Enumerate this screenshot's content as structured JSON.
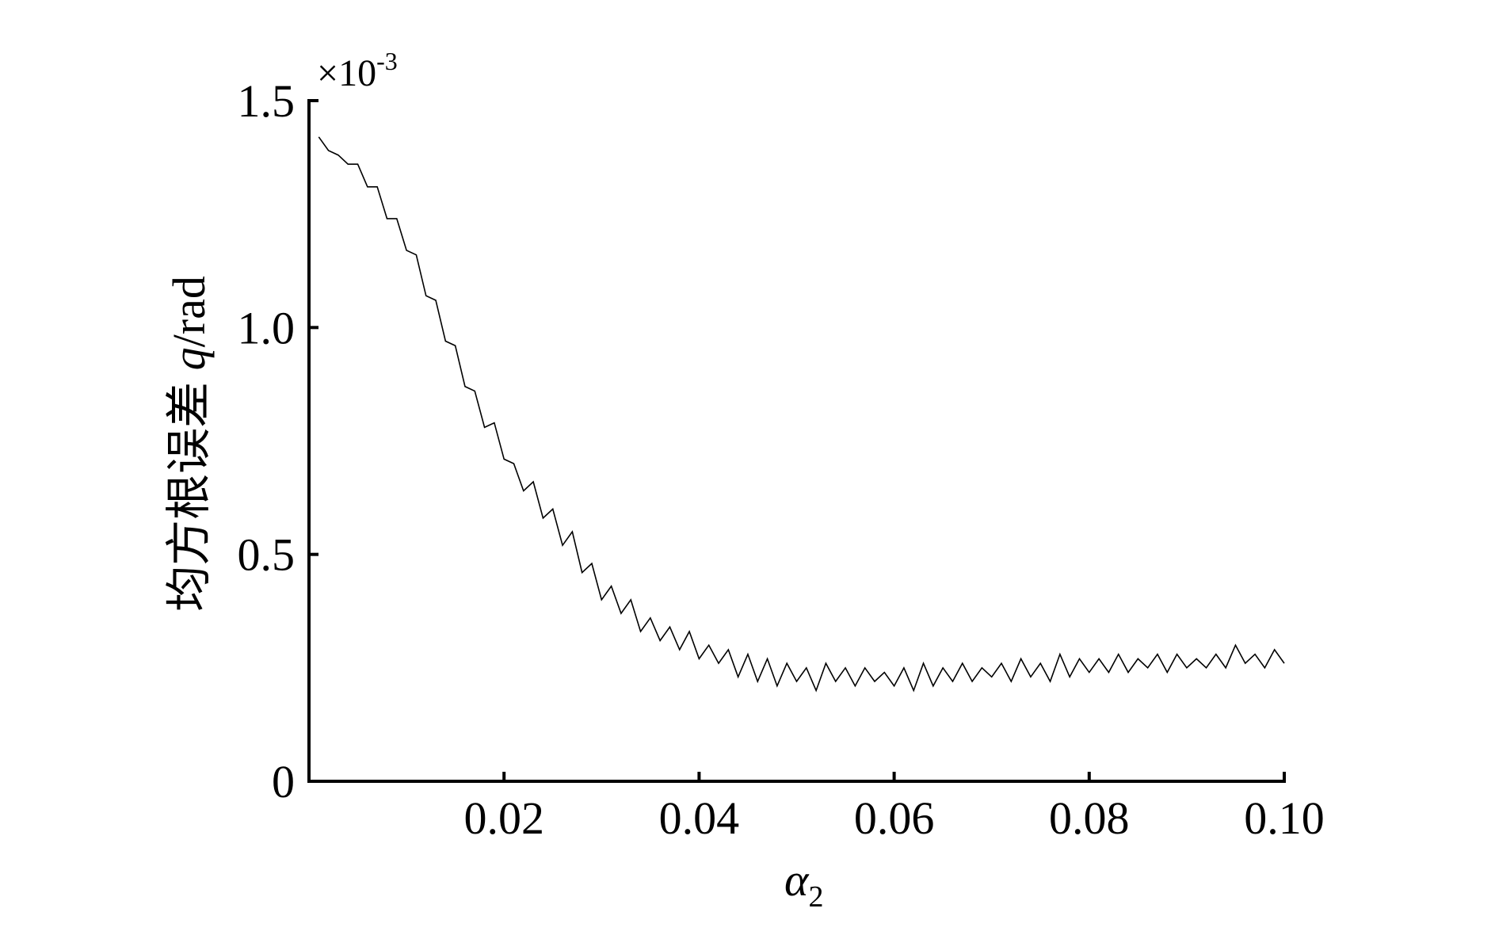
{
  "chart_data": {
    "type": "line",
    "ylabel_text": "均方根误差 ",
    "ylabel_var": "q",
    "ylabel_unit": "/rad",
    "xlabel": "α",
    "xlabel_sub": "2",
    "multiplier": "×10",
    "multiplier_exponent": "-3",
    "color": "#000000",
    "x": [
      0.001,
      0.002,
      0.003,
      0.004,
      0.005,
      0.006,
      0.007,
      0.008,
      0.009,
      0.01,
      0.011,
      0.012,
      0.013,
      0.014,
      0.015,
      0.016,
      0.017,
      0.018,
      0.019,
      0.02,
      0.021,
      0.022,
      0.023,
      0.024,
      0.025,
      0.026,
      0.027,
      0.028,
      0.029,
      0.03,
      0.031,
      0.032,
      0.033,
      0.034,
      0.035,
      0.036,
      0.037,
      0.038,
      0.039,
      0.04,
      0.041,
      0.042,
      0.043,
      0.044,
      0.045,
      0.046,
      0.047,
      0.048,
      0.049,
      0.05,
      0.051,
      0.052,
      0.053,
      0.054,
      0.055,
      0.056,
      0.057,
      0.058,
      0.059,
      0.06,
      0.061,
      0.062,
      0.063,
      0.064,
      0.065,
      0.066,
      0.067,
      0.068,
      0.069,
      0.07,
      0.071,
      0.072,
      0.073,
      0.074,
      0.075,
      0.076,
      0.077,
      0.078,
      0.079,
      0.08,
      0.081,
      0.082,
      0.083,
      0.084,
      0.085,
      0.086,
      0.087,
      0.088,
      0.089,
      0.09,
      0.091,
      0.092,
      0.093,
      0.094,
      0.095,
      0.096,
      0.097,
      0.098,
      0.099,
      0.1
    ],
    "values": [
      1.42,
      1.39,
      1.38,
      1.36,
      1.36,
      1.31,
      1.31,
      1.24,
      1.24,
      1.17,
      1.16,
      1.07,
      1.06,
      0.97,
      0.96,
      0.87,
      0.86,
      0.78,
      0.79,
      0.71,
      0.7,
      0.64,
      0.66,
      0.58,
      0.6,
      0.52,
      0.55,
      0.46,
      0.48,
      0.4,
      0.43,
      0.37,
      0.4,
      0.33,
      0.36,
      0.31,
      0.34,
      0.29,
      0.33,
      0.27,
      0.3,
      0.26,
      0.29,
      0.23,
      0.28,
      0.22,
      0.27,
      0.21,
      0.26,
      0.22,
      0.25,
      0.2,
      0.26,
      0.22,
      0.25,
      0.21,
      0.25,
      0.22,
      0.24,
      0.21,
      0.25,
      0.2,
      0.26,
      0.21,
      0.25,
      0.22,
      0.26,
      0.22,
      0.25,
      0.23,
      0.26,
      0.22,
      0.27,
      0.23,
      0.26,
      0.22,
      0.28,
      0.23,
      0.27,
      0.24,
      0.27,
      0.24,
      0.28,
      0.24,
      0.27,
      0.25,
      0.28,
      0.24,
      0.28,
      0.25,
      0.27,
      0.25,
      0.28,
      0.25,
      0.3,
      0.26,
      0.28,
      0.25,
      0.29,
      0.26
    ],
    "xlim": [
      0,
      0.1
    ],
    "xticks": [
      0.02,
      0.04,
      0.06,
      0.08,
      {
        "value": 0.1,
        "label": "0.10"
      }
    ],
    "ylim": [
      0,
      1.5
    ],
    "yticks": [
      0,
      0.5,
      {
        "value": 1,
        "label": "1.0"
      },
      1.5
    ]
  }
}
